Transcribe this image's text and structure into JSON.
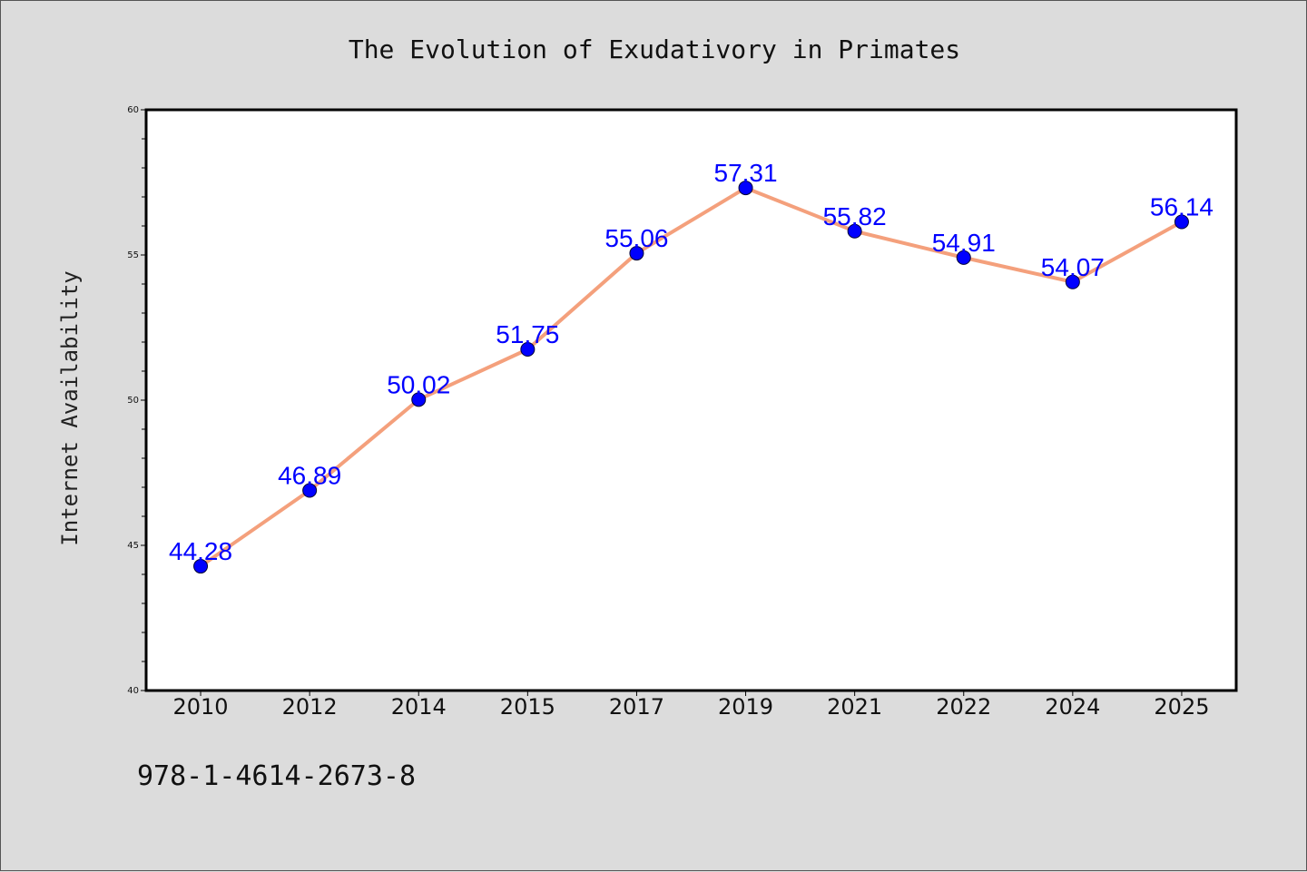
{
  "chart_data": {
    "type": "line",
    "title": "The Evolution of Exudativory in Primates",
    "xlabel": "",
    "ylabel": "Internet Availability",
    "categories": [
      "2010",
      "2012",
      "2014",
      "2015",
      "2017",
      "2019",
      "2021",
      "2022",
      "2024",
      "2025"
    ],
    "series": [
      {
        "values": [
          44.28,
          46.89,
          50.02,
          51.75,
          55.06,
          57.31,
          55.82,
          54.91,
          54.07,
          56.14
        ],
        "labels": [
          "44.28",
          "46.89",
          "50.02",
          "51.75",
          "55.06",
          "57.31",
          "55.82",
          "54.91",
          "54.07",
          "56.14"
        ],
        "line_color": "#f4a07c",
        "marker_color": "#0000ff"
      }
    ],
    "ylim": [
      40,
      60
    ],
    "yticks": [
      "40",
      "45",
      "50",
      "55",
      "60"
    ],
    "grid": false,
    "background": "#dcdcdc",
    "plot_background": "#ffffff"
  },
  "footnote": "978-1-4614-2673-8"
}
